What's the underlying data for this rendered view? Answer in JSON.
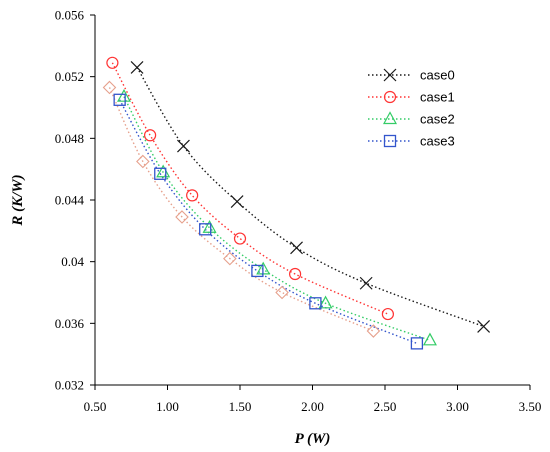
{
  "chart_data": {
    "type": "scatter",
    "xlabel": "P (W)",
    "ylabel": "R (K/W)",
    "xlim": [
      0.5,
      3.5
    ],
    "ylim": [
      0.032,
      0.056
    ],
    "xticks": [
      "0.50",
      "1.00",
      "1.50",
      "2.00",
      "2.50",
      "3.00",
      "3.50"
    ],
    "yticks": [
      "0.032",
      "0.036",
      "0.04",
      "0.044",
      "0.048",
      "0.052",
      "0.056"
    ],
    "grid": false,
    "legend_position": "top-right",
    "series": [
      {
        "name": "case0",
        "color": "#1a1a1a",
        "marker": "x-icon",
        "points": [
          [
            0.79,
            0.0526
          ],
          [
            1.11,
            0.0475
          ],
          [
            1.48,
            0.0439
          ],
          [
            1.89,
            0.0409
          ],
          [
            2.37,
            0.0386
          ],
          [
            3.18,
            0.0358
          ]
        ]
      },
      {
        "name": "case1",
        "color": "#ff3333",
        "marker": "circle-icon",
        "points": [
          [
            0.62,
            0.0529
          ],
          [
            0.88,
            0.0482
          ],
          [
            1.17,
            0.0443
          ],
          [
            1.5,
            0.0415
          ],
          [
            1.88,
            0.0392
          ],
          [
            2.52,
            0.0366
          ]
        ]
      },
      {
        "name": "case2",
        "color": "#33cc66",
        "marker": "triangle-icon",
        "points": [
          [
            0.7,
            0.0507
          ],
          [
            0.97,
            0.0458
          ],
          [
            1.29,
            0.0422
          ],
          [
            1.66,
            0.0395
          ],
          [
            2.09,
            0.0373
          ],
          [
            2.81,
            0.0349
          ]
        ]
      },
      {
        "name": "case3",
        "color": "#3355cc",
        "marker": "square-icon",
        "points": [
          [
            0.67,
            0.0505
          ],
          [
            0.95,
            0.0457
          ],
          [
            1.26,
            0.0421
          ],
          [
            1.62,
            0.0394
          ],
          [
            2.02,
            0.0373
          ],
          [
            2.72,
            0.0347
          ]
        ]
      },
      {
        "name": "",
        "color": "#e6a08c",
        "marker": "diamond-icon",
        "points": [
          [
            0.6,
            0.0513
          ],
          [
            0.83,
            0.0465
          ],
          [
            1.1,
            0.0429
          ],
          [
            1.43,
            0.0402
          ],
          [
            1.79,
            0.038
          ],
          [
            2.42,
            0.0355
          ]
        ]
      }
    ]
  }
}
